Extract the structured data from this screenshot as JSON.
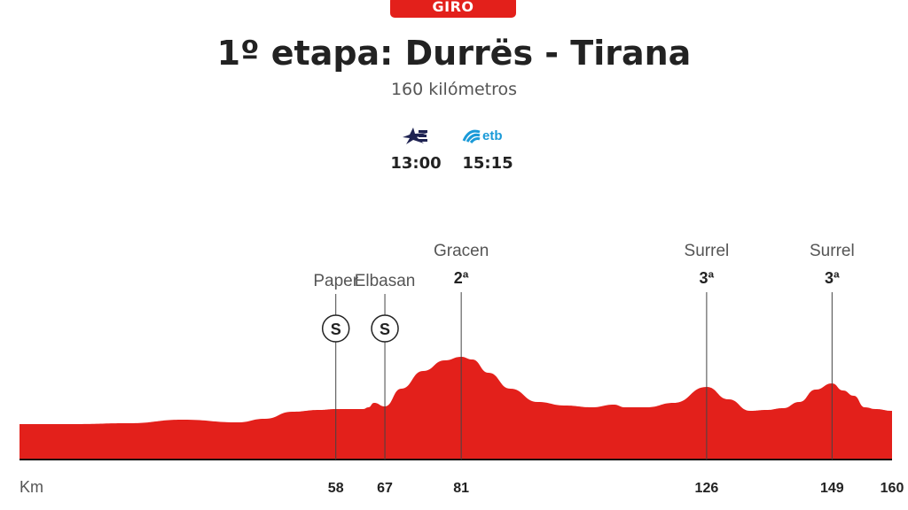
{
  "header": {
    "race": "GIRO",
    "title": "1º etapa: Durrës - Tirana",
    "distance": "160 kilómetros"
  },
  "broadcasters": [
    {
      "logo": "eurosport-logo-icon",
      "time": "13:00",
      "color": "#1f2352"
    },
    {
      "logo": "etb-logo-icon",
      "name": "etb",
      "time": "15:15",
      "color": "#1a9ad8"
    }
  ],
  "colors": {
    "accent": "#e3201b",
    "text": "#222222"
  },
  "chart_data": {
    "type": "area",
    "xlabel": "Km",
    "xlim": [
      0,
      160
    ],
    "series": [
      {
        "x": [
          0,
          10,
          20,
          30,
          40,
          45,
          50,
          55,
          58,
          61,
          63,
          64,
          65,
          67,
          70,
          74,
          78,
          81,
          83,
          86,
          90,
          95,
          100,
          105,
          109,
          111,
          115,
          120,
          126,
          130,
          134,
          137,
          140,
          143,
          146,
          149,
          151,
          153,
          155,
          157,
          160
        ],
        "y": [
          40,
          40,
          41,
          45,
          42,
          46,
          54,
          56,
          57,
          57,
          57,
          59,
          64,
          60,
          80,
          100,
          112,
          116,
          113,
          98,
          80,
          65,
          61,
          59,
          62,
          59,
          59,
          64,
          82,
          68,
          55,
          56,
          58,
          65,
          79,
          86,
          78,
          72,
          59,
          57,
          55
        ]
      }
    ],
    "points": [
      {
        "km": 58,
        "name": "Paper",
        "type": "sprint",
        "badge": "S"
      },
      {
        "km": 67,
        "name": "Elbasan",
        "type": "sprint",
        "badge": "S"
      },
      {
        "km": 81,
        "name": "Gracen",
        "type": "climb",
        "category": "2ª"
      },
      {
        "km": 126,
        "name": "Surrel",
        "type": "climb",
        "category": "3ª"
      },
      {
        "km": 149,
        "name": "Surrel",
        "type": "climb",
        "category": "3ª"
      }
    ],
    "km_ticks": [
      58,
      67,
      81,
      126,
      149,
      160
    ]
  }
}
